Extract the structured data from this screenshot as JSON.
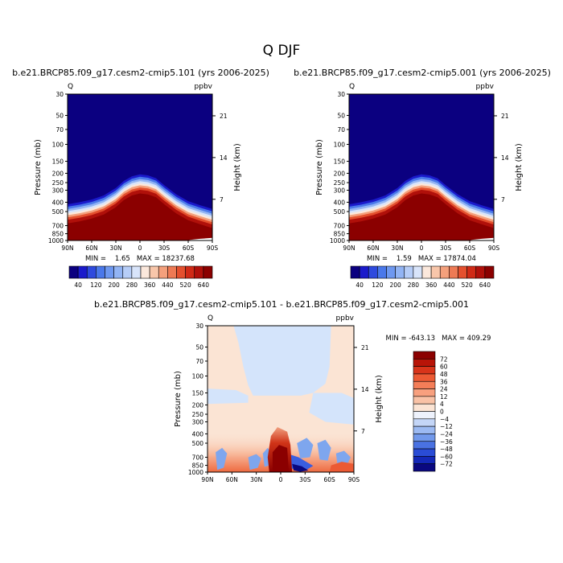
{
  "figure": {
    "title": "Q  DJF",
    "panels": [
      {
        "id": "case1",
        "title": "b.e21.BRCP85.f09_g17.cesm2-cmip5.101 (yrs 2006-2025)",
        "corner_left": "Q",
        "corner_right": "ppbv",
        "ylabel": "Pressure (mb)",
        "ylabel_right": "Height (km)",
        "stats": "MIN =    1.65   MAX = 18237.68"
      },
      {
        "id": "case2",
        "title": "b.e21.BRCP85.f09_g17.cesm2-cmip5.001 (yrs 2006-2025)",
        "corner_left": "Q",
        "corner_right": "ppbv",
        "ylabel": "Pressure (mb)",
        "ylabel_right": "Height (km)",
        "stats": "MIN =    1.59   MAX = 17874.04"
      },
      {
        "id": "diff",
        "title": "b.e21.BRCP85.f09_g17.cesm2-cmip5.101 - b.e21.BRCP85.f09_g17.cesm2-cmip5.001",
        "corner_left": "Q",
        "corner_right": "ppbv",
        "ylabel": "Pressure (mb)",
        "ylabel_right": "Height (km)",
        "stats": "MIN = -643.13   MAX = 409.29"
      }
    ],
    "colorbar_top": {
      "labels": [
        "40",
        "120",
        "200",
        "280",
        "360",
        "440",
        "520",
        "640"
      ],
      "colors": [
        "#0b0080",
        "#1a1acb",
        "#2e4ade",
        "#4a78ea",
        "#6e98f0",
        "#92b4f4",
        "#b6cdf7",
        "#d8e4fa",
        "#fbe8dc",
        "#f8c6aa",
        "#f4a07c",
        "#ee7a54",
        "#e4502e",
        "#d02a16",
        "#b0100a",
        "#8b0000"
      ]
    },
    "colorbar_diff": {
      "labels": [
        "72",
        "60",
        "48",
        "36",
        "24",
        "12",
        "4",
        "0",
        "−4",
        "−12",
        "−24",
        "−36",
        "−48",
        "−60",
        "−72"
      ],
      "colors_top_to_bottom": [
        "#8b0000",
        "#b81408",
        "#d8341a",
        "#ec5a34",
        "#f47e58",
        "#f8a07e",
        "#f9c2a6",
        "#fbe4d4",
        "#eef2fc",
        "#c4d6f7",
        "#9cbaf2",
        "#7299eb",
        "#4a72e2",
        "#2a4cd6",
        "#1428b8",
        "#0a0880"
      ]
    }
  },
  "chart_data": [
    {
      "type": "heatmap",
      "title": "b.e21.BRCP85.f09_g17.cesm2-cmip5.101 (yrs 2006-2025)",
      "variable": "Q",
      "units": "ppbv",
      "xlabel": "",
      "ylabel": "Pressure (mb)",
      "ylabel_right": "Height (km)",
      "x_ticks": [
        "90N",
        "60N",
        "30N",
        "0",
        "30S",
        "60S",
        "90S"
      ],
      "x_range": [
        90,
        -90
      ],
      "y_ticks": [
        30,
        50,
        70,
        100,
        150,
        200,
        250,
        300,
        400,
        500,
        700,
        850,
        1000
      ],
      "y_range": [
        1000,
        30
      ],
      "y_scale": "log",
      "right_ticks": [
        7,
        14,
        21
      ],
      "min": 1.65,
      "max": 18237.68,
      "tropopause_profile": {
        "lat": [
          90,
          75,
          60,
          45,
          30,
          20,
          10,
          0,
          -10,
          -20,
          -30,
          -45,
          -60,
          -75,
          -90
        ],
        "pressure_mb": [
          420,
          400,
          375,
          340,
          285,
          240,
          215,
          205,
          210,
          225,
          265,
          330,
          390,
          430,
          470
        ]
      }
    },
    {
      "type": "heatmap",
      "title": "b.e21.BRCP85.f09_g17.cesm2-cmip5.001 (yrs 2006-2025)",
      "variable": "Q",
      "units": "ppbv",
      "xlabel": "",
      "ylabel": "Pressure (mb)",
      "ylabel_right": "Height (km)",
      "x_ticks": [
        "90N",
        "60N",
        "30N",
        "0",
        "30S",
        "60S",
        "90S"
      ],
      "x_range": [
        90,
        -90
      ],
      "y_ticks": [
        30,
        50,
        70,
        100,
        150,
        200,
        250,
        300,
        400,
        500,
        700,
        850,
        1000
      ],
      "y_range": [
        1000,
        30
      ],
      "y_scale": "log",
      "right_ticks": [
        7,
        14,
        21
      ],
      "min": 1.59,
      "max": 17874.04,
      "tropopause_profile": {
        "lat": [
          90,
          75,
          60,
          45,
          30,
          20,
          10,
          0,
          -10,
          -20,
          -30,
          -45,
          -60,
          -75,
          -90
        ],
        "pressure_mb": [
          420,
          400,
          375,
          340,
          285,
          240,
          215,
          205,
          210,
          225,
          265,
          330,
          390,
          430,
          470
        ]
      }
    },
    {
      "type": "heatmap",
      "title": "b.e21.BRCP85.f09_g17.cesm2-cmip5.101 - b.e21.BRCP85.f09_g17.cesm2-cmip5.001",
      "variable": "Q",
      "units": "ppbv",
      "xlabel": "",
      "ylabel": "Pressure (mb)",
      "ylabel_right": "Height (km)",
      "x_ticks": [
        "90N",
        "60N",
        "30N",
        "0",
        "30S",
        "60S",
        "90S"
      ],
      "x_range": [
        90,
        -90
      ],
      "y_ticks": [
        30,
        50,
        70,
        100,
        150,
        200,
        250,
        300,
        400,
        500,
        700,
        850,
        1000
      ],
      "y_range": [
        1000,
        30
      ],
      "y_scale": "log",
      "right_ticks": [
        7,
        14,
        21
      ],
      "min": -643.13,
      "max": 409.29,
      "contour_levels": [
        -72,
        -60,
        -48,
        -36,
        -24,
        -12,
        -4,
        0,
        4,
        12,
        24,
        36,
        48,
        60,
        72
      ]
    }
  ]
}
